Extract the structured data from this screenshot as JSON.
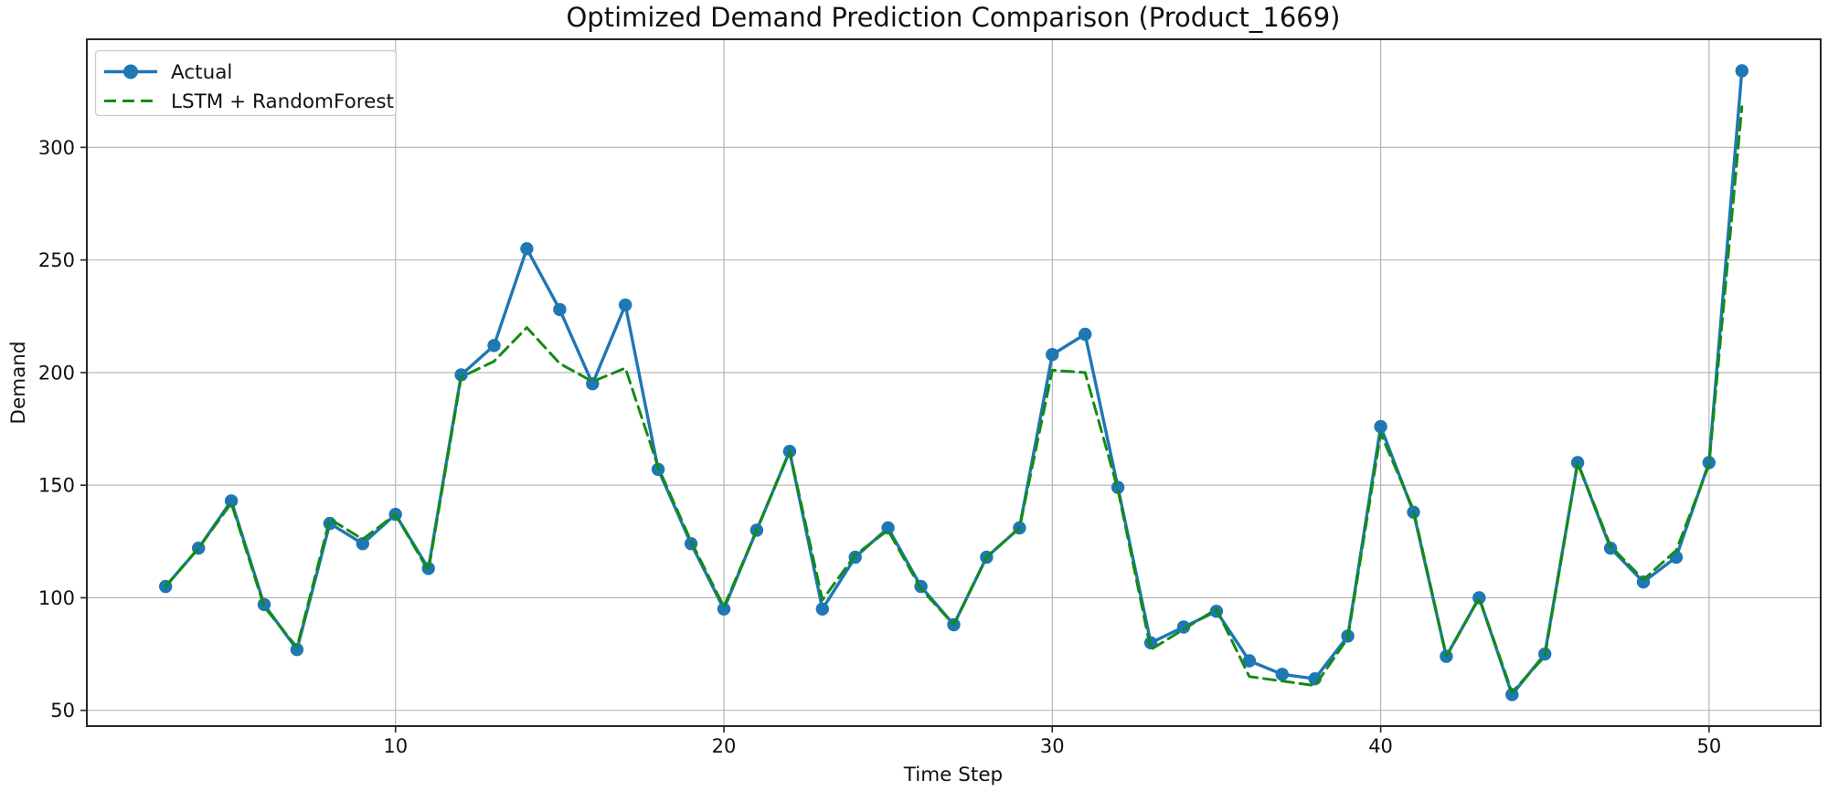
{
  "chart_data": {
    "type": "line",
    "title": "Optimized Demand Prediction Comparison (Product_1669)",
    "xlabel": "Time Step",
    "ylabel": "Demand",
    "x": [
      3,
      4,
      5,
      6,
      7,
      8,
      9,
      10,
      11,
      12,
      13,
      14,
      15,
      16,
      17,
      18,
      19,
      20,
      21,
      22,
      23,
      24,
      25,
      26,
      27,
      28,
      29,
      30,
      31,
      32,
      33,
      34,
      35,
      36,
      37,
      38,
      39,
      40,
      41,
      42,
      43,
      44,
      45,
      46,
      47,
      48,
      49,
      50,
      51
    ],
    "series": [
      {
        "name": "Actual",
        "color": "#1f77b4",
        "line": "solid",
        "marker": "circle",
        "values": [
          105,
          122,
          143,
          97,
          77,
          133,
          124,
          137,
          113,
          199,
          212,
          255,
          228,
          195,
          230,
          157,
          124,
          95,
          130,
          165,
          95,
          118,
          131,
          105,
          88,
          118,
          131,
          208,
          217,
          149,
          80,
          87,
          94,
          72,
          66,
          64,
          83,
          176,
          138,
          74,
          100,
          57,
          75,
          160,
          122,
          107,
          118,
          160,
          334
        ]
      },
      {
        "name": "LSTM + RandomForest",
        "color": "#128c12",
        "line": "dashed",
        "marker": "none",
        "values": [
          105,
          122,
          142,
          96,
          78,
          135,
          126,
          137,
          112,
          198,
          205,
          220,
          204,
          196,
          202,
          158,
          125,
          96,
          130,
          165,
          99,
          119,
          130,
          104,
          88,
          118,
          131,
          201,
          200,
          148,
          77,
          86,
          95,
          65,
          63,
          61,
          82,
          173,
          139,
          74,
          100,
          58,
          74,
          160,
          123,
          108,
          121,
          159,
          318
        ]
      }
    ],
    "xticks": [
      10,
      20,
      30,
      40,
      50
    ],
    "yticks": [
      50,
      100,
      150,
      200,
      250,
      300
    ],
    "xlim": [
      0.6,
      53.4
    ],
    "ylim": [
      43,
      348
    ],
    "grid": true,
    "legend_position": "upper left"
  }
}
